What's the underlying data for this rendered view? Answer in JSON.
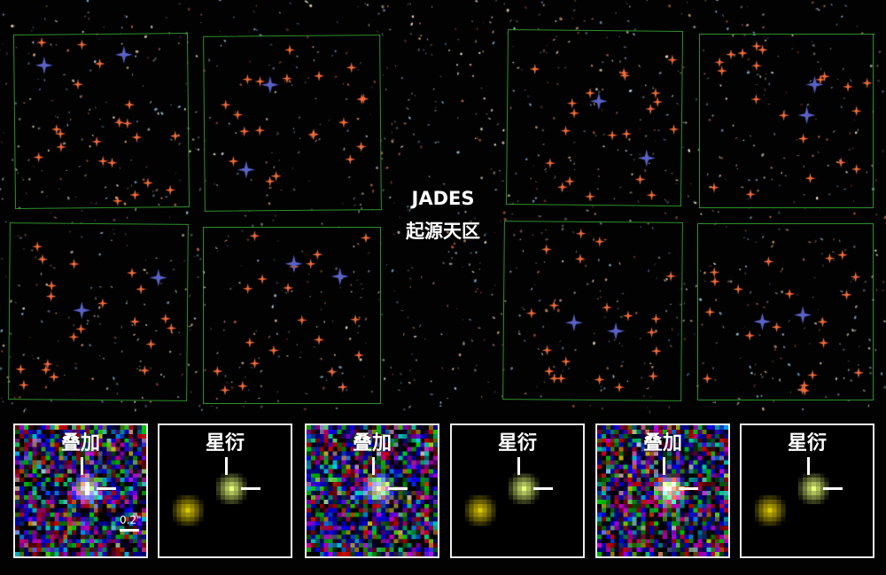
{
  "field": {
    "title": "JADES",
    "subtitle": "起源天区"
  },
  "colors": {
    "box": "#2f8f2a",
    "marker_candidate": "#f26b3a",
    "marker_highlight": "#5a62c8"
  },
  "panels": [
    {
      "label": "叠加",
      "style": "noisy",
      "scale_label": "0.2\""
    },
    {
      "label": "星衍",
      "style": "smooth"
    },
    {
      "label": "叠加",
      "style": "noisy"
    },
    {
      "label": "星衍",
      "style": "smooth"
    },
    {
      "label": "叠加",
      "style": "noisy"
    },
    {
      "label": "星衍",
      "style": "smooth"
    }
  ]
}
